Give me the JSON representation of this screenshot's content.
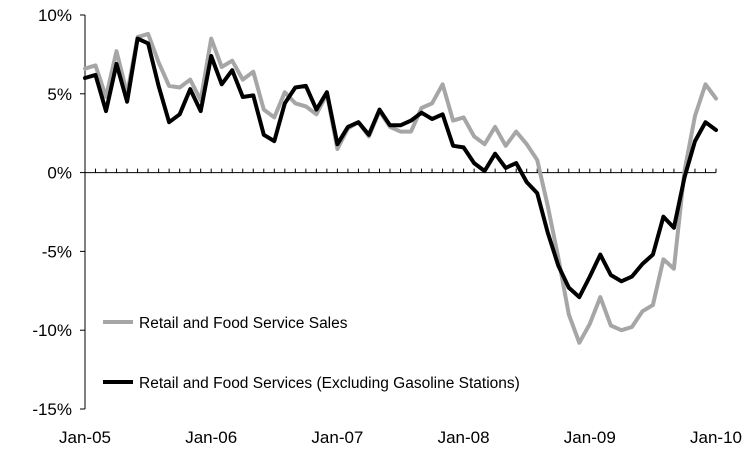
{
  "chart_data": {
    "type": "line",
    "title": "",
    "xlabel": "",
    "ylabel": "",
    "x_tick_labels": [
      "Jan-05",
      "Jan-06",
      "Jan-07",
      "Jan-08",
      "Jan-09",
      "Jan-10"
    ],
    "y_tick_labels": [
      "10%",
      "5%",
      "0%",
      "-5%",
      "-10%",
      "-15%"
    ],
    "y_ticks": [
      10,
      5,
      0,
      -5,
      -10,
      -15
    ],
    "ylim": [
      -15,
      10
    ],
    "x_start": "Jan-05",
    "x_end": "Jan-10",
    "grid": false,
    "legend_position": "bottom-left",
    "series": [
      {
        "name": "Retail and Food Service Sales",
        "color": "#a6a6a6",
        "values": [
          6.6,
          6.8,
          4.8,
          7.7,
          5.0,
          8.6,
          8.8,
          7.0,
          5.5,
          5.4,
          5.9,
          4.6,
          8.5,
          6.7,
          7.1,
          5.9,
          6.4,
          4.0,
          3.5,
          5.1,
          4.4,
          4.2,
          3.7,
          5.0,
          1.5,
          2.8,
          3.2,
          2.3,
          3.9,
          2.9,
          2.6,
          2.6,
          4.1,
          4.4,
          5.6,
          3.3,
          3.5,
          2.3,
          1.8,
          2.9,
          1.7,
          2.6,
          1.8,
          0.8,
          -2.1,
          -5.4,
          -9.0,
          -10.8,
          -9.6,
          -7.9,
          -9.7,
          -10.0,
          -9.8,
          -8.8,
          -8.4,
          -5.5,
          -6.1,
          0.1,
          3.6,
          5.6,
          4.7
        ]
      },
      {
        "name": "Retail and Food Services (Excluding Gasoline Stations)",
        "color": "#000000",
        "values": [
          6.0,
          6.2,
          3.9,
          6.9,
          4.5,
          8.5,
          8.2,
          5.5,
          3.2,
          3.7,
          5.3,
          3.9,
          7.4,
          5.6,
          6.5,
          4.8,
          4.9,
          2.4,
          2.0,
          4.4,
          5.4,
          5.5,
          4.0,
          5.1,
          1.8,
          2.9,
          3.2,
          2.4,
          4.0,
          3.0,
          3.0,
          3.3,
          3.8,
          3.4,
          3.7,
          1.7,
          1.6,
          0.6,
          0.1,
          1.2,
          0.3,
          0.6,
          -0.6,
          -1.3,
          -3.8,
          -5.9,
          -7.3,
          -7.9,
          -6.6,
          -5.2,
          -6.5,
          -6.9,
          -6.6,
          -5.8,
          -5.2,
          -2.8,
          -3.5,
          -0.3,
          2.0,
          3.2,
          2.7
        ]
      }
    ]
  }
}
